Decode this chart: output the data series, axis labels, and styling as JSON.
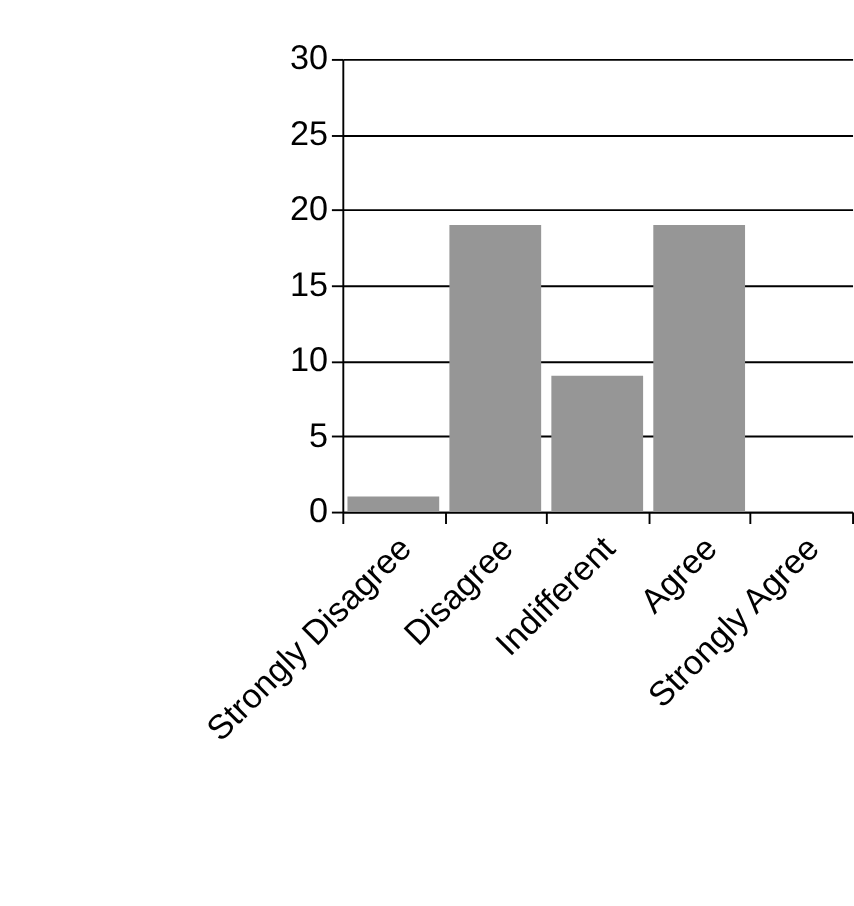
{
  "chart_data": {
    "type": "bar",
    "categories": [
      "Strongly Disagree",
      "Disagree",
      "Indifferent",
      "Agree",
      "Strongly Agree"
    ],
    "values": [
      1,
      19,
      9,
      19,
      0
    ],
    "color": "#969696",
    "ylim": [
      0,
      30
    ],
    "yticks": [
      0,
      5,
      10,
      15,
      20,
      25,
      30
    ],
    "grid": "y"
  }
}
